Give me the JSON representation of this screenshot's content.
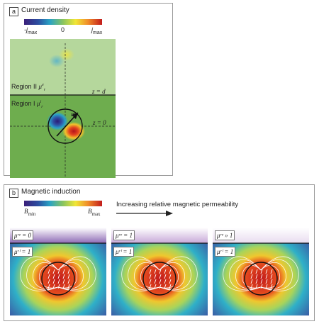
{
  "panel_a": {
    "tag": "a",
    "title": "Current density",
    "colorbar": {
      "min_label_main": "-j",
      "min_label_sub": "max",
      "mid_label": "0",
      "max_label_main": "j",
      "max_label_sub": "max"
    },
    "region2_label": "Region II",
    "region2_mu": "μ",
    "region2_mu_sub": "r",
    "region2_mu_sup": "e",
    "region1_label": "Region I",
    "region1_mu": "μ",
    "region1_mu_sub": "r",
    "region1_mu_sup": "i",
    "z_d": "z = d",
    "z_0": "z = 0",
    "vector_label": "m"
  },
  "panel_b": {
    "tag": "b",
    "title": "Magnetic induction",
    "colorbar": {
      "min_main": "B",
      "min_sub": "min",
      "max_main": "B",
      "max_sub": "max"
    },
    "arrow_caption": "Increasing relative magnetic permeability",
    "plots": [
      {
        "mu_e": "μʳᵉ = 0",
        "mu_i": "μʳⁱ = 1"
      },
      {
        "mu_e": "μʳᵉ = 1",
        "mu_i": "μʳⁱ = 1"
      },
      {
        "mu_e": "μʳᵉ » 1",
        "mu_i": "μʳⁱ = 1"
      }
    ]
  }
}
